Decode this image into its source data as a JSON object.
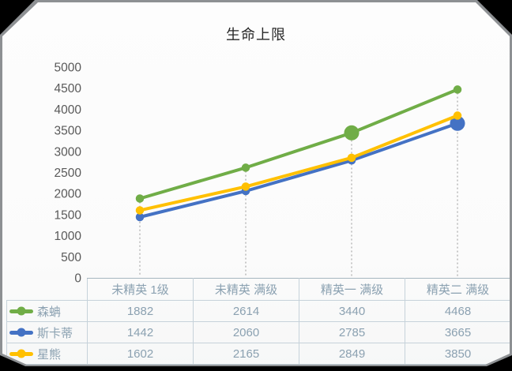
{
  "frame": {
    "outer_background": "#000000",
    "edge_color": "#8d9093",
    "surface_color": "#fcfcfc"
  },
  "chart_data": {
    "type": "line",
    "title": "生命上限",
    "categories": [
      "未精英 1级",
      "未精英 满级",
      "精英一 满级",
      "精英二 满级"
    ],
    "series": [
      {
        "name": "森蚺",
        "color": "#70AD47",
        "values": [
          1882,
          2614,
          3440,
          4468
        ],
        "big_marker_index": 2
      },
      {
        "name": "斯卡蒂",
        "color": "#4472C4",
        "values": [
          1442,
          2060,
          2785,
          3665
        ],
        "big_marker_index": 3
      },
      {
        "name": "星熊",
        "color": "#FFC000",
        "values": [
          1602,
          2165,
          2849,
          3850
        ],
        "big_marker_index": -1
      }
    ],
    "ylim": [
      0,
      5000
    ],
    "yticks": [
      0,
      500,
      1000,
      1500,
      2000,
      2500,
      3000,
      3500,
      4000,
      4500,
      5000
    ],
    "grid": "dotted vertical drop lines at each category",
    "legend_position": "data table left column"
  },
  "styles": {
    "title_color": "#262626",
    "axis_label_color": "#595959",
    "table_text_color": "#8ba1b1",
    "table_border_color": "#c6d2da",
    "axis_line_color": "#a7b6c0",
    "drop_line_color": "#c9c9c9"
  }
}
